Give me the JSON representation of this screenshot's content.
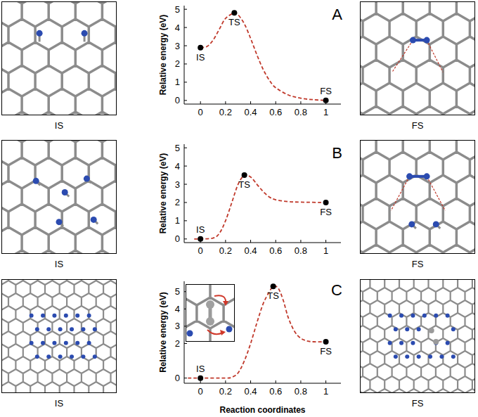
{
  "chart_data": [
    {
      "type": "line",
      "title": "A",
      "y_label": "Relative energy (eV)",
      "xlim": [
        -0.13,
        1.12
      ],
      "ylim": [
        -0.2,
        5.2
      ],
      "xticks": [
        0,
        0.2,
        0.4,
        0.6,
        0.8,
        1
      ],
      "yticks": [
        0,
        1,
        2,
        3,
        4,
        5
      ],
      "series": [
        {
          "type": "line",
          "color": "#c0392b",
          "line_style": "dashed",
          "marker": "none",
          "x": [
            0,
            0.05,
            0.1,
            0.15,
            0.2,
            0.27,
            0.3,
            0.35,
            0.4,
            0.45,
            0.5,
            0.55,
            0.6,
            0.7,
            0.8,
            0.9,
            1
          ],
          "values": [
            2.9,
            2.95,
            3.3,
            3.9,
            4.5,
            4.8,
            4.7,
            4.2,
            3.4,
            2.5,
            1.7,
            1.1,
            0.7,
            0.3,
            0.12,
            0.04,
            0
          ]
        },
        {
          "type": "scatter",
          "color": "#000000",
          "marker": "circle",
          "x": [
            0,
            0.27,
            1
          ],
          "values": [
            2.9,
            4.8,
            0
          ],
          "labels": [
            "IS",
            "TS",
            "FS"
          ]
        }
      ]
    },
    {
      "type": "line",
      "title": "B",
      "y_label": "Relative energy (eV)",
      "xlim": [
        -0.13,
        1.12
      ],
      "ylim": [
        -0.2,
        5.2
      ],
      "xticks": [
        0,
        0.2,
        0.4,
        0.6,
        0.8,
        1
      ],
      "yticks": [
        0,
        1,
        2,
        3,
        4,
        5
      ],
      "series": [
        {
          "type": "line",
          "color": "#c0392b",
          "line_style": "dashed",
          "marker": "none",
          "x": [
            -0.05,
            0,
            0.1,
            0.15,
            0.2,
            0.25,
            0.3,
            0.35,
            0.4,
            0.45,
            0.5,
            0.55,
            0.6,
            0.7,
            0.8,
            1
          ],
          "values": [
            0,
            0,
            0.05,
            0.3,
            1.0,
            2.0,
            3.0,
            3.5,
            3.4,
            3.0,
            2.6,
            2.3,
            2.15,
            2.05,
            2.02,
            2.0
          ]
        },
        {
          "type": "scatter",
          "color": "#000000",
          "marker": "circle",
          "x": [
            0,
            0.35,
            1
          ],
          "values": [
            0,
            3.5,
            2.0
          ],
          "labels": [
            "IS",
            "TS",
            "FS"
          ]
        }
      ]
    },
    {
      "type": "line",
      "title": "C",
      "y_label": "Relative energy (eV)",
      "x_label": "Reaction coordinates",
      "xlim": [
        -0.13,
        1.12
      ],
      "ylim": [
        -0.3,
        5.6
      ],
      "xticks": [
        0,
        0.2,
        0.4,
        0.6,
        0.8,
        1
      ],
      "yticks": [
        0,
        2,
        3,
        4,
        5
      ],
      "series": [
        {
          "type": "line",
          "color": "#c0392b",
          "line_style": "dashed",
          "marker": "none",
          "x": [
            -0.1,
            0,
            0.2,
            0.25,
            0.3,
            0.35,
            0.4,
            0.45,
            0.5,
            0.55,
            0.58,
            0.62,
            0.66,
            0.7,
            0.75,
            0.8,
            0.85,
            0.9,
            1
          ],
          "values": [
            0,
            0,
            0,
            0.05,
            0.3,
            1.0,
            2.0,
            3.2,
            4.3,
            5.0,
            5.3,
            5.2,
            4.5,
            3.5,
            2.7,
            2.3,
            2.15,
            2.1,
            2.1
          ]
        },
        {
          "type": "scatter",
          "color": "#000000",
          "marker": "circle",
          "x": [
            0,
            0.58,
            1
          ],
          "values": [
            0,
            5.3,
            2.1
          ],
          "labels": [
            "IS",
            "TS",
            "FS"
          ]
        }
      ]
    }
  ],
  "structures": [
    {
      "initial": "IS",
      "final": "FS"
    },
    {
      "initial": "IS",
      "final": "FS"
    },
    {
      "initial": "IS",
      "final": "FS"
    }
  ]
}
